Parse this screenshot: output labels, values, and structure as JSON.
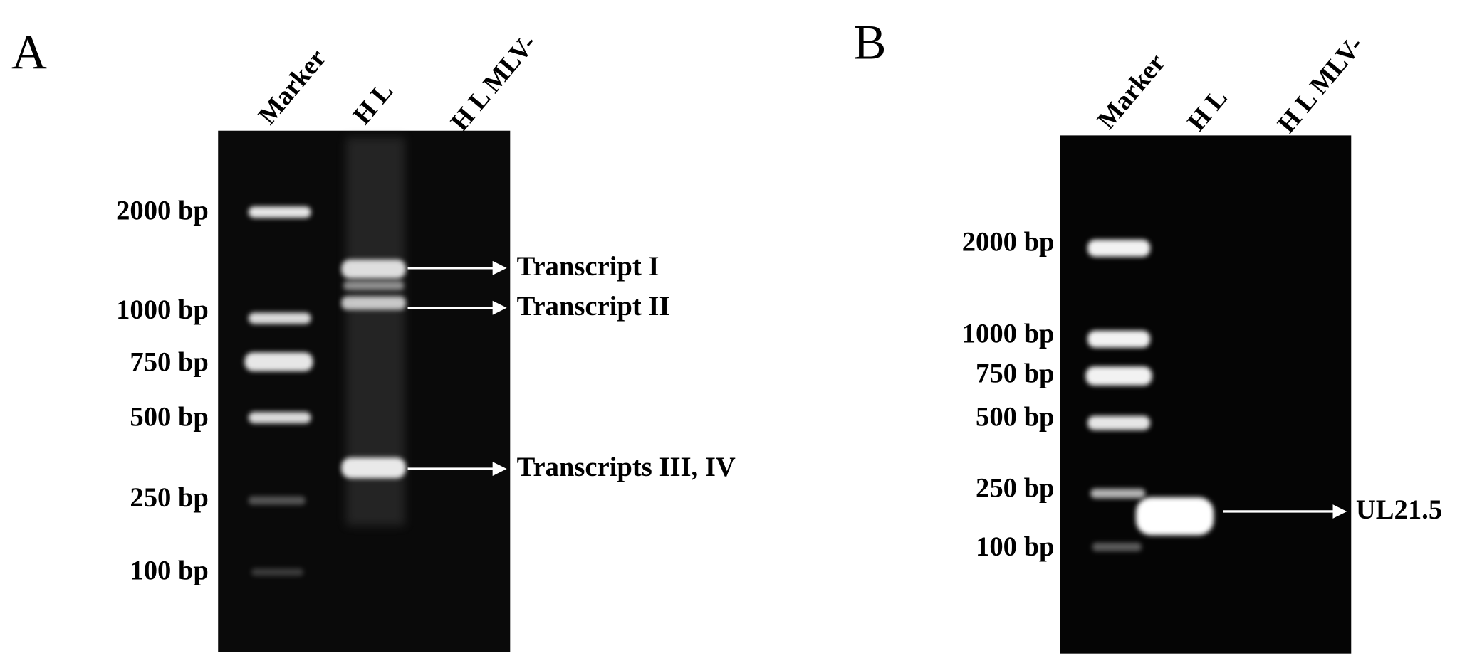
{
  "panels": [
    {
      "label": "A",
      "lanes": [
        "Marker",
        "H L",
        "H L MLV-"
      ],
      "sizes": [
        "2000 bp",
        "1000 bp",
        "750 bp",
        "500 bp",
        "250 bp",
        "100 bp"
      ],
      "annotations": [
        "Transcript I",
        "Transcript II",
        "Transcripts III, IV"
      ]
    },
    {
      "label": "B",
      "lanes": [
        "Marker",
        "H L",
        "H L MLV-"
      ],
      "sizes": [
        "2000 bp",
        "1000 bp",
        "750 bp",
        "500 bp",
        "250 bp",
        "100 bp"
      ],
      "annotations": [
        "UL21.5"
      ]
    }
  ]
}
